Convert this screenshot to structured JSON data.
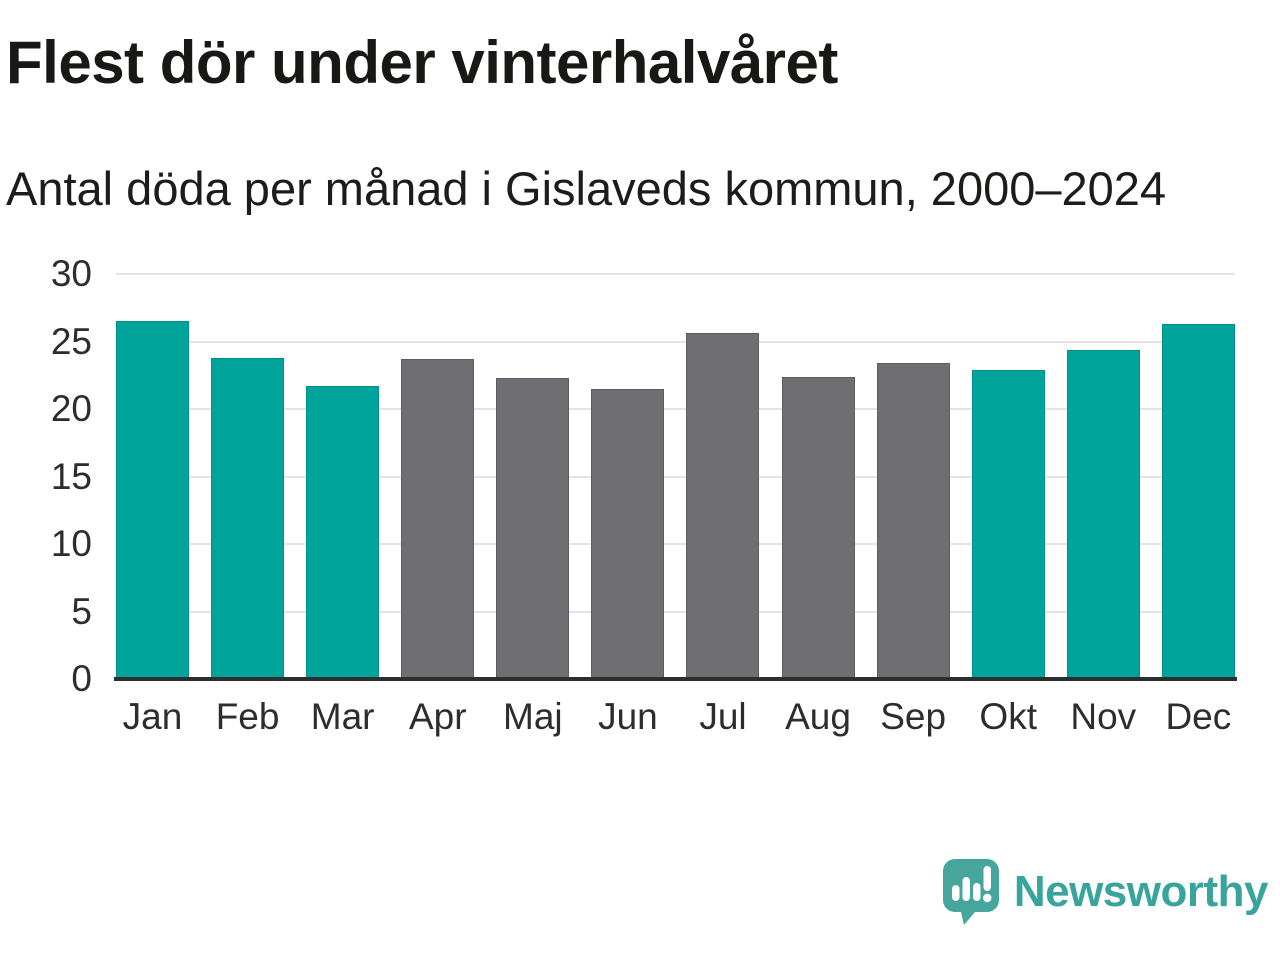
{
  "header": {
    "title": "Flest dör under vinterhalvåret",
    "subtitle": "Antal döda per månad i Gislaveds kommun, 2000–2024"
  },
  "chart_data": {
    "type": "bar",
    "title": "Flest dör under vinterhalvåret",
    "subtitle": "Antal döda per månad i Gislaveds kommun, 2000–2024",
    "categories": [
      "Jan",
      "Feb",
      "Mar",
      "Apr",
      "Maj",
      "Jun",
      "Jul",
      "Aug",
      "Sep",
      "Okt",
      "Nov",
      "Dec"
    ],
    "values": [
      26.5,
      23.8,
      21.7,
      23.7,
      22.3,
      21.5,
      25.6,
      22.4,
      23.4,
      22.9,
      24.4,
      26.3
    ],
    "bar_colors": [
      "#00a49a",
      "#00a49a",
      "#00a49a",
      "#6e6e73",
      "#6e6e73",
      "#6e6e73",
      "#6e6e73",
      "#6e6e73",
      "#6e6e73",
      "#00a49a",
      "#00a49a",
      "#00a49a"
    ],
    "bar_border_colors": [
      "#00928a",
      "#00928a",
      "#00928a",
      "#5c5c61",
      "#5c5c61",
      "#5c5c61",
      "#5c5c61",
      "#5c5c61",
      "#5c5c61",
      "#00928a",
      "#00928a",
      "#00928a"
    ],
    "highlight_color": "#00a49a",
    "base_color": "#6e6e73",
    "xlabel": "",
    "ylabel": "",
    "ylim": [
      0,
      30
    ],
    "yticks": [
      0,
      5,
      10,
      15,
      20,
      25,
      30
    ],
    "grid": true,
    "grid_color": "#e4e4e4",
    "axis_color": "#2e2e2e",
    "legend": "none"
  },
  "branding": {
    "logo_text": "Newsworthy",
    "logo_bubble_color": "#46a69e",
    "logo_text_color": "#38a49b",
    "logo_glyph_color": "#ffffff"
  }
}
